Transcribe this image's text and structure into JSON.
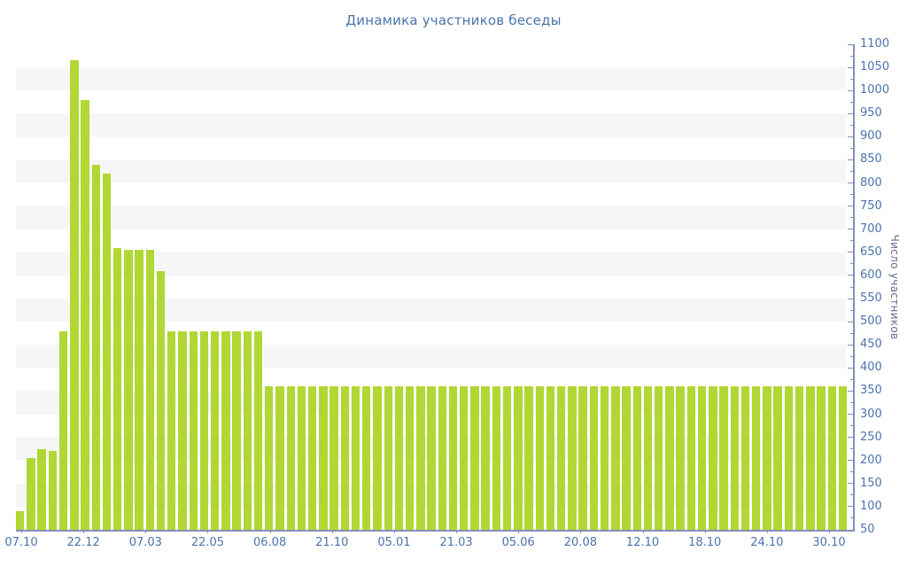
{
  "title": "Динамика участников беседы",
  "y_axis": {
    "title": "Число участников",
    "min": 50,
    "max": 1100,
    "major_step": 50,
    "minor_step": 25
  },
  "x_axis": {
    "tick_labels": [
      "07.10",
      "22.12",
      "07.03",
      "22.05",
      "06.08",
      "21.10",
      "05.01",
      "21.03",
      "05.06",
      "20.08",
      "12.10",
      "18.10",
      "24.10",
      "30.10"
    ]
  },
  "colors": {
    "bar": "#b1d735",
    "stripe": "#f6f6f8",
    "background": "#ffffff",
    "axis_line": "#8291b8",
    "tick_label": "#4a74ad",
    "title_text": "#4a74ad",
    "y_axis_title_text": "#6a6a8e"
  },
  "chart_data": {
    "type": "bar",
    "title": "Динамика участников беседы",
    "xlabel": "",
    "ylabel": "Число участников",
    "ylim": [
      50,
      1100
    ],
    "grid": "horizontal-stripes",
    "legend": "none",
    "x_tick_labels": [
      "07.10",
      "22.12",
      "07.03",
      "22.05",
      "06.08",
      "21.10",
      "05.01",
      "21.03",
      "05.06",
      "20.08",
      "12.10",
      "18.10",
      "24.10",
      "30.10"
    ],
    "values": [
      90,
      205,
      225,
      220,
      480,
      1065,
      980,
      840,
      820,
      660,
      655,
      655,
      655,
      610,
      480,
      480,
      480,
      480,
      480,
      480,
      480,
      480,
      480,
      360,
      360,
      360,
      360,
      360,
      360,
      360,
      360,
      360,
      360,
      360,
      360,
      360,
      360,
      360,
      360,
      360,
      360,
      360,
      360,
      360,
      360,
      360,
      360,
      360,
      360,
      360,
      360,
      360,
      360,
      360,
      360,
      360,
      360,
      360,
      360,
      360,
      360,
      360,
      360,
      360,
      360,
      360,
      360,
      360,
      360,
      360,
      360,
      360,
      360,
      360,
      360,
      360,
      360
    ]
  }
}
